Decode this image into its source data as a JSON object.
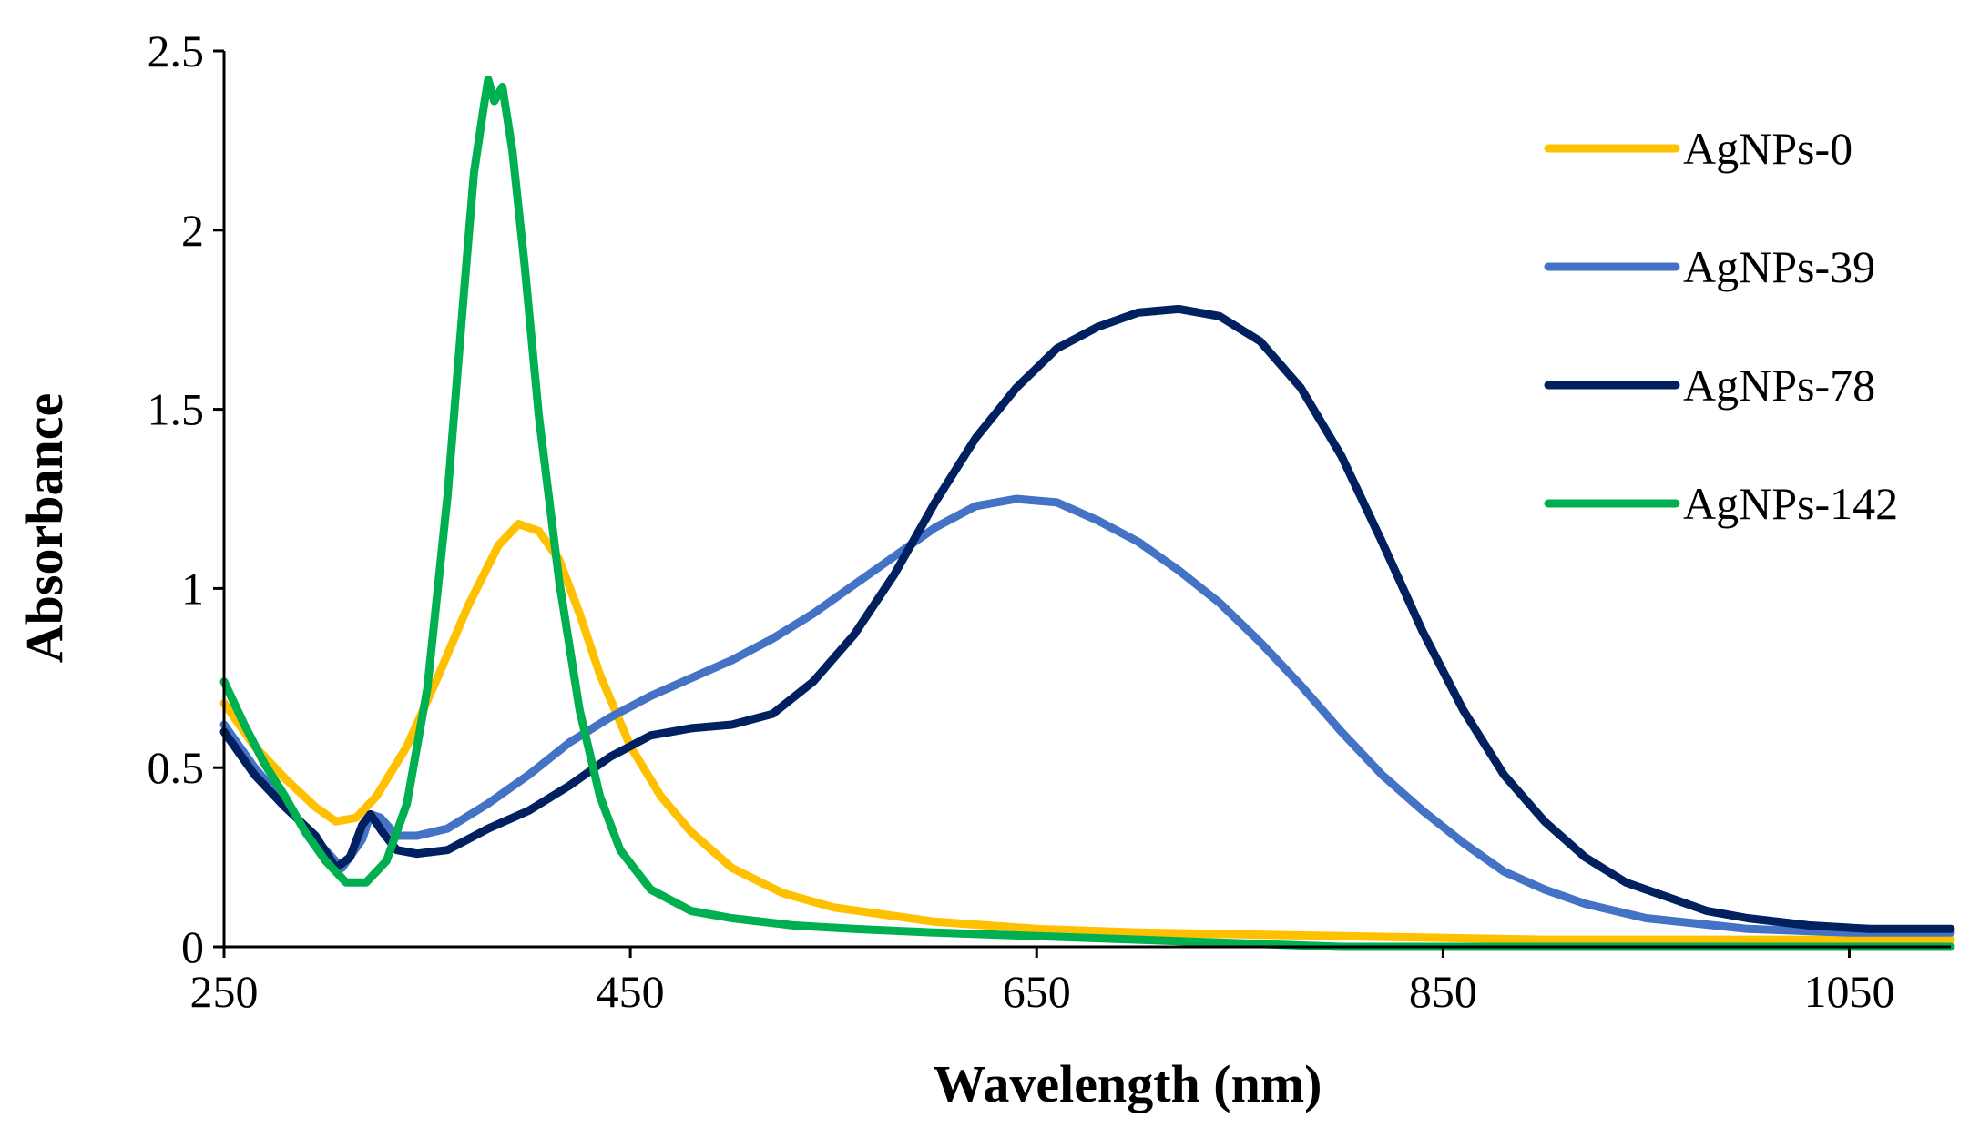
{
  "chart_data": {
    "type": "line",
    "title": "",
    "xlabel": "Wavelength (nm)",
    "ylabel": "Absorbance",
    "xlim": [
      250,
      1100
    ],
    "ylim": [
      0,
      2.5
    ],
    "xticks": [
      250,
      450,
      650,
      850,
      1050
    ],
    "yticks": [
      0,
      0.5,
      1,
      1.5,
      2,
      2.5
    ],
    "xtick_labels": [
      "250",
      "450",
      "650",
      "850",
      "1050"
    ],
    "ytick_labels": [
      "0",
      "0.5",
      "1",
      "1.5",
      "2",
      "2.5"
    ],
    "grid": false,
    "legend_position": "top-right",
    "series": [
      {
        "name": "AgNPs-0",
        "color": "#FFC000",
        "points": [
          [
            250,
            0.68
          ],
          [
            265,
            0.56
          ],
          [
            280,
            0.47
          ],
          [
            295,
            0.39
          ],
          [
            305,
            0.35
          ],
          [
            315,
            0.36
          ],
          [
            325,
            0.42
          ],
          [
            340,
            0.56
          ],
          [
            355,
            0.75
          ],
          [
            370,
            0.95
          ],
          [
            385,
            1.12
          ],
          [
            395,
            1.18
          ],
          [
            405,
            1.16
          ],
          [
            415,
            1.08
          ],
          [
            425,
            0.93
          ],
          [
            435,
            0.76
          ],
          [
            450,
            0.56
          ],
          [
            465,
            0.42
          ],
          [
            480,
            0.32
          ],
          [
            500,
            0.22
          ],
          [
            525,
            0.15
          ],
          [
            550,
            0.11
          ],
          [
            600,
            0.07
          ],
          [
            650,
            0.05
          ],
          [
            700,
            0.04
          ],
          [
            800,
            0.03
          ],
          [
            900,
            0.02
          ],
          [
            1000,
            0.02
          ],
          [
            1100,
            0.02
          ]
        ]
      },
      {
        "name": "AgNPs-39",
        "color": "#4472C4",
        "points": [
          [
            250,
            0.62
          ],
          [
            265,
            0.5
          ],
          [
            280,
            0.4
          ],
          [
            295,
            0.3
          ],
          [
            308,
            0.22
          ],
          [
            318,
            0.3
          ],
          [
            322,
            0.37
          ],
          [
            327,
            0.36
          ],
          [
            335,
            0.31
          ],
          [
            345,
            0.31
          ],
          [
            360,
            0.33
          ],
          [
            380,
            0.4
          ],
          [
            400,
            0.48
          ],
          [
            420,
            0.57
          ],
          [
            440,
            0.64
          ],
          [
            460,
            0.7
          ],
          [
            480,
            0.75
          ],
          [
            500,
            0.8
          ],
          [
            520,
            0.86
          ],
          [
            540,
            0.93
          ],
          [
            560,
            1.01
          ],
          [
            580,
            1.09
          ],
          [
            600,
            1.17
          ],
          [
            620,
            1.23
          ],
          [
            640,
            1.25
          ],
          [
            660,
            1.24
          ],
          [
            680,
            1.19
          ],
          [
            700,
            1.13
          ],
          [
            720,
            1.05
          ],
          [
            740,
            0.96
          ],
          [
            760,
            0.85
          ],
          [
            780,
            0.73
          ],
          [
            800,
            0.6
          ],
          [
            820,
            0.48
          ],
          [
            840,
            0.38
          ],
          [
            860,
            0.29
          ],
          [
            880,
            0.21
          ],
          [
            900,
            0.16
          ],
          [
            920,
            0.12
          ],
          [
            950,
            0.08
          ],
          [
            1000,
            0.05
          ],
          [
            1050,
            0.04
          ],
          [
            1100,
            0.04
          ]
        ]
      },
      {
        "name": "AgNPs-78",
        "color": "#002060",
        "points": [
          [
            250,
            0.6
          ],
          [
            265,
            0.48
          ],
          [
            280,
            0.39
          ],
          [
            295,
            0.31
          ],
          [
            305,
            0.22
          ],
          [
            312,
            0.25
          ],
          [
            318,
            0.34
          ],
          [
            322,
            0.37
          ],
          [
            328,
            0.32
          ],
          [
            335,
            0.27
          ],
          [
            345,
            0.26
          ],
          [
            360,
            0.27
          ],
          [
            380,
            0.33
          ],
          [
            400,
            0.38
          ],
          [
            420,
            0.45
          ],
          [
            440,
            0.53
          ],
          [
            460,
            0.59
          ],
          [
            480,
            0.61
          ],
          [
            500,
            0.62
          ],
          [
            520,
            0.65
          ],
          [
            540,
            0.74
          ],
          [
            560,
            0.87
          ],
          [
            580,
            1.04
          ],
          [
            600,
            1.24
          ],
          [
            620,
            1.42
          ],
          [
            640,
            1.56
          ],
          [
            660,
            1.67
          ],
          [
            680,
            1.73
          ],
          [
            700,
            1.77
          ],
          [
            720,
            1.78
          ],
          [
            740,
            1.76
          ],
          [
            760,
            1.69
          ],
          [
            780,
            1.56
          ],
          [
            800,
            1.37
          ],
          [
            820,
            1.13
          ],
          [
            840,
            0.88
          ],
          [
            860,
            0.66
          ],
          [
            880,
            0.48
          ],
          [
            900,
            0.35
          ],
          [
            920,
            0.25
          ],
          [
            940,
            0.18
          ],
          [
            960,
            0.14
          ],
          [
            980,
            0.1
          ],
          [
            1000,
            0.08
          ],
          [
            1030,
            0.06
          ],
          [
            1060,
            0.05
          ],
          [
            1100,
            0.05
          ]
        ]
      },
      {
        "name": "AgNPs-142",
        "color": "#00B050",
        "points": [
          [
            250,
            0.74
          ],
          [
            260,
            0.62
          ],
          [
            270,
            0.51
          ],
          [
            280,
            0.42
          ],
          [
            290,
            0.32
          ],
          [
            300,
            0.24
          ],
          [
            310,
            0.18
          ],
          [
            320,
            0.18
          ],
          [
            330,
            0.24
          ],
          [
            340,
            0.4
          ],
          [
            350,
            0.72
          ],
          [
            360,
            1.26
          ],
          [
            368,
            1.82
          ],
          [
            373,
            2.16
          ],
          [
            378,
            2.35
          ],
          [
            380,
            2.42
          ],
          [
            383,
            2.36
          ],
          [
            387,
            2.4
          ],
          [
            392,
            2.22
          ],
          [
            398,
            1.9
          ],
          [
            405,
            1.48
          ],
          [
            415,
            1.02
          ],
          [
            425,
            0.66
          ],
          [
            435,
            0.42
          ],
          [
            445,
            0.27
          ],
          [
            460,
            0.16
          ],
          [
            480,
            0.1
          ],
          [
            500,
            0.08
          ],
          [
            530,
            0.06
          ],
          [
            560,
            0.05
          ],
          [
            600,
            0.04
          ],
          [
            650,
            0.03
          ],
          [
            700,
            0.02
          ],
          [
            750,
            0.01
          ],
          [
            800,
            0.0
          ],
          [
            1100,
            0.0
          ]
        ]
      }
    ]
  }
}
